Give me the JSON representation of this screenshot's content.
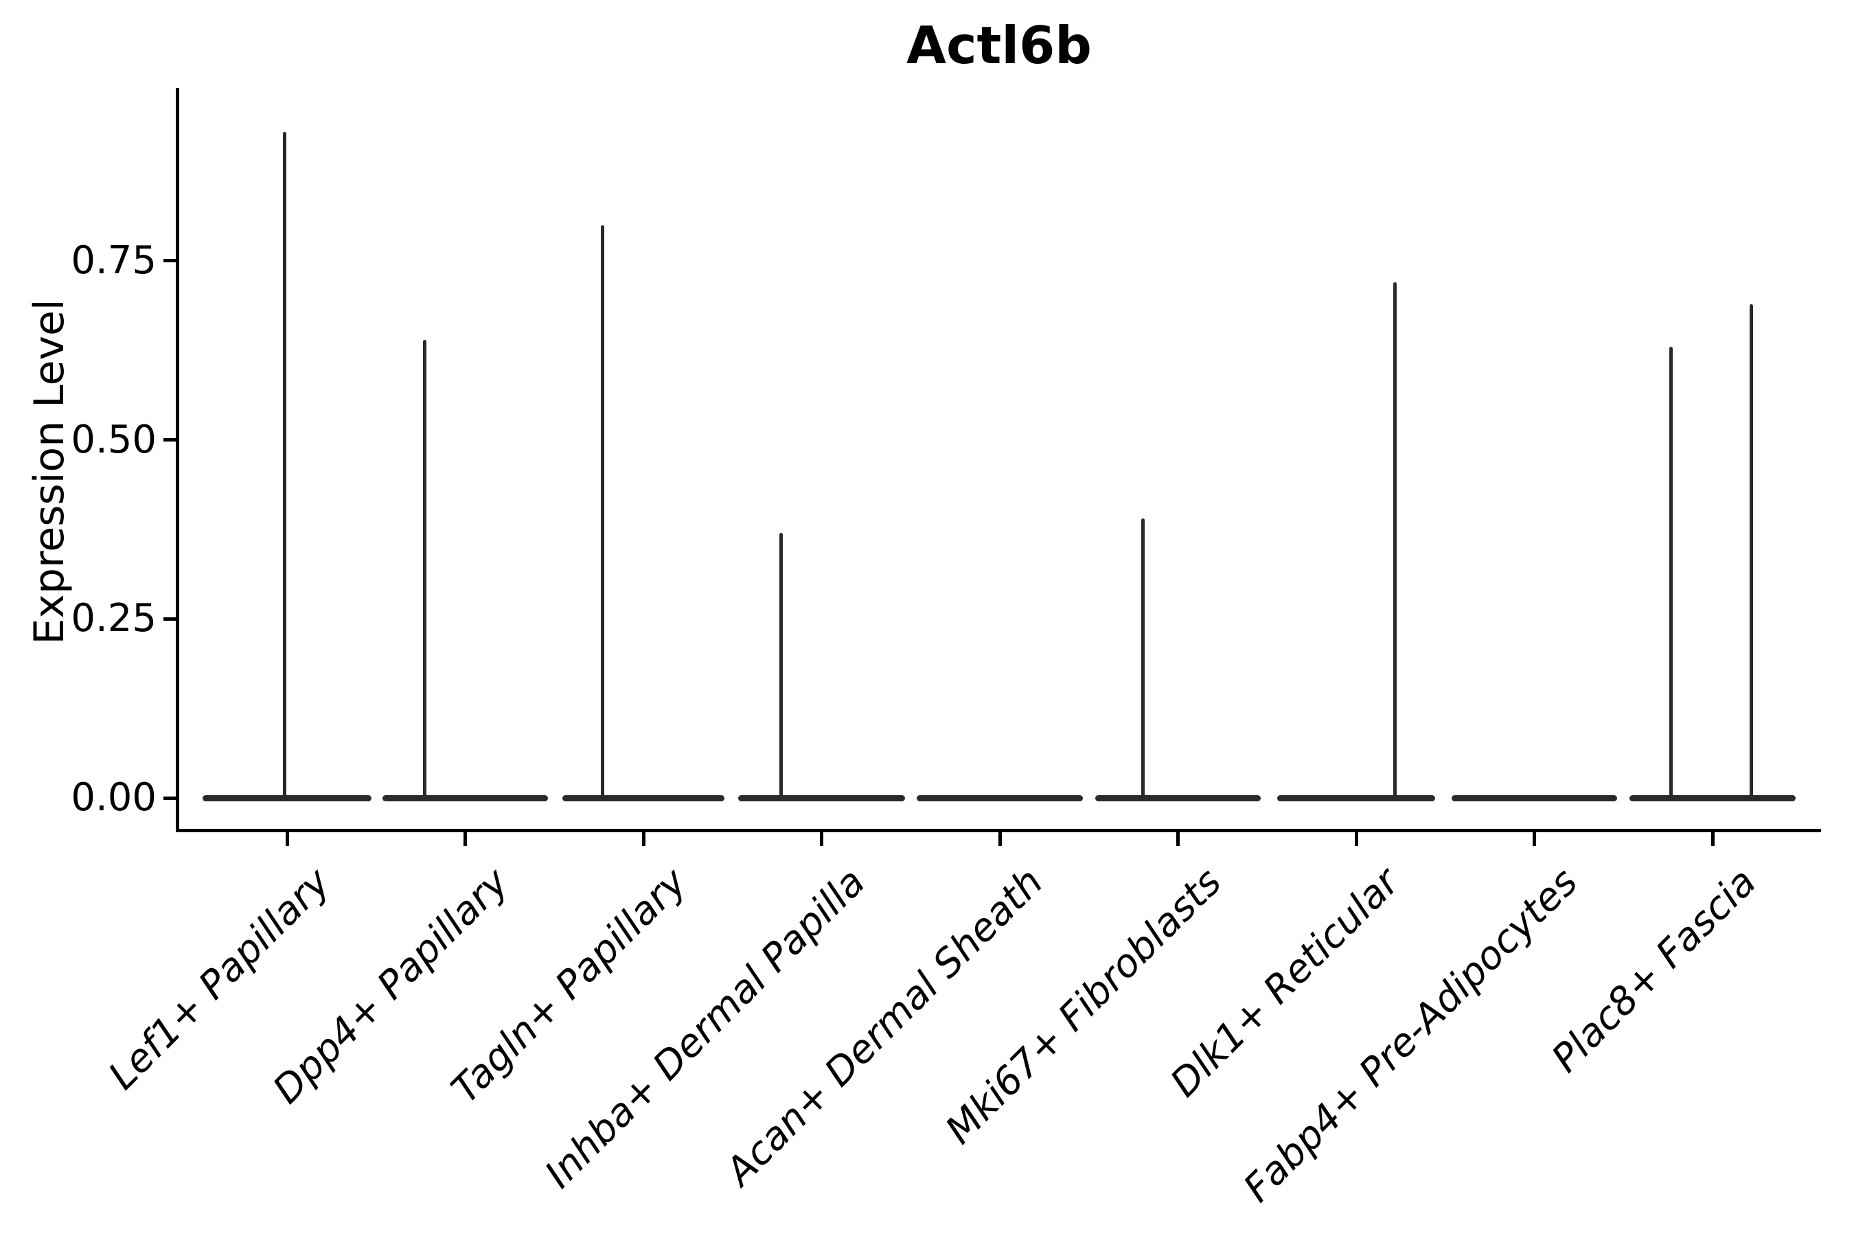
{
  "figure": {
    "title": "Actl6b",
    "ylabel": "Expression Level"
  },
  "chart_data": {
    "type": "violin",
    "title": "Actl6b",
    "subtitle": "",
    "xlabel": "",
    "ylabel": "Expression Level",
    "grid": false,
    "legend": "none",
    "ylim": [
      -0.047,
      0.99
    ],
    "ytick_labels": [
      "0.00",
      "0.25",
      "0.50",
      "0.75"
    ],
    "ytick_values": [
      0,
      0.25,
      0.5,
      0.75
    ],
    "categories": [
      "Lef1+ Papillary",
      "Dpp4+ Papillary",
      "Tagln+ Papillary",
      "Inhba+ Dermal Papilla",
      "Acan+ Dermal Sheath",
      "Mki67+ Fibroblasts",
      "Dlk1+ Reticular",
      "Fabp4+ Pre-Adipocytes",
      "Plac8+ Fascia"
    ],
    "violins": [
      {
        "category": "Lef1+ Papillary",
        "body_value": 0,
        "body_width": 0.95,
        "max_expression": 0.93,
        "spikes": [
          {
            "value": 0.93,
            "offset": -0.012
          }
        ]
      },
      {
        "category": "Dpp4+ Papillary",
        "body_value": 0,
        "body_width": 0.93,
        "max_expression": 0.64,
        "spikes": [
          {
            "value": 0.64,
            "offset": -0.229
          }
        ]
      },
      {
        "category": "Tagln+ Papillary",
        "body_value": 0,
        "body_width": 0.91,
        "max_expression": 0.8,
        "spikes": [
          {
            "value": 0.8,
            "offset": -0.231
          }
        ]
      },
      {
        "category": "Inhba+ Dermal Papilla",
        "body_value": 0,
        "body_width": 0.94,
        "max_expression": 0.37,
        "spikes": [
          {
            "value": 0.37,
            "offset": -0.229
          }
        ]
      },
      {
        "category": "Acan+ Dermal Sheath",
        "body_value": 0,
        "body_width": 0.93,
        "max_expression": 0.0,
        "spikes": []
      },
      {
        "category": "Mki67+ Fibroblasts",
        "body_value": 0,
        "body_width": 0.93,
        "max_expression": 0.39,
        "spikes": [
          {
            "value": 0.39,
            "offset": -0.198
          }
        ]
      },
      {
        "category": "Dlk1+ Reticular",
        "body_value": 0,
        "body_width": 0.89,
        "max_expression": 0.72,
        "spikes": [
          {
            "value": 0.72,
            "offset": 0.216
          }
        ]
      },
      {
        "category": "Fabp4+ Pre-Adipocytes",
        "body_value": 0,
        "body_width": 0.93,
        "max_expression": 0.0,
        "spikes": []
      },
      {
        "category": "Plac8+ Fascia",
        "body_value": 0,
        "body_width": 0.93,
        "max_expression": 0.69,
        "spikes": [
          {
            "value": 0.63,
            "offset": -0.235
          },
          {
            "value": 0.69,
            "offset": 0.216
          }
        ]
      }
    ],
    "colors": {
      "stroke": "#2a2a2a",
      "axis": "#000000",
      "text": "#000000",
      "background": "#ffffff"
    }
  }
}
